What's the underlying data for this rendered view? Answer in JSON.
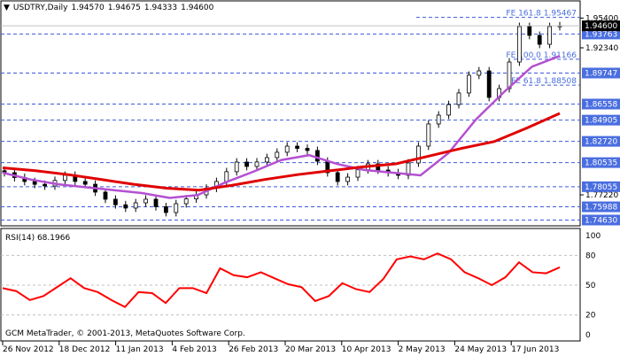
{
  "header": {
    "symbol_timeframe": "USDTRY,Daily",
    "open": "1.94570",
    "high": "1.94675",
    "low": "1.94333",
    "close": "1.94600"
  },
  "colors": {
    "candle": "#000000",
    "sma_fast": "#b450d2",
    "sma_slow": "#e00000",
    "level_line": "#3c5adc",
    "level_label_bg": "#4a6ee0",
    "rsi": "#ff0000",
    "fe_text": "#4a6ee0"
  },
  "chart_data": [
    {
      "type": "candlestick",
      "title": "USDTRY,Daily",
      "x_tick_labels": [
        "26 Nov 2012",
        "18 Dec 2012",
        "11 Jan 2013",
        "4 Feb 2013",
        "26 Feb 2013",
        "20 Mar 2013",
        "10 Apr 2013",
        "2 May 2013",
        "24 May 2013",
        "17 Jun 2013"
      ],
      "y_tick_labels": [
        "1.95400",
        "1.92340",
        "1.77220"
      ],
      "ylim": [
        1.74,
        1.965
      ],
      "closes": [
        1.795,
        1.79,
        1.7859,
        1.783,
        1.7813,
        1.787,
        1.7923,
        1.786,
        1.7831,
        1.775,
        1.7677,
        1.762,
        1.7586,
        1.764,
        1.7677,
        1.76,
        1.754,
        1.7631,
        1.768,
        1.7722,
        1.779,
        1.7859,
        1.796,
        1.8059,
        1.8014,
        1.806,
        1.8105,
        1.816,
        1.8223,
        1.82,
        1.8178,
        1.8068,
        1.795,
        1.7859,
        1.7904,
        1.798,
        1.8041,
        1.7977,
        1.795,
        1.7923,
        1.805,
        1.8223,
        1.8451,
        1.8542,
        1.865,
        1.877,
        1.8952,
        1.8997,
        1.8724,
        1.8815,
        1.9088,
        1.9453,
        1.9362,
        1.927,
        1.9453,
        1.946
      ],
      "sma_fast": [
        1.795,
        1.788,
        1.783,
        1.78,
        1.777,
        1.774,
        1.769,
        1.772,
        1.785,
        1.796,
        1.808,
        1.813,
        1.804,
        1.7977,
        1.795,
        1.7923,
        1.815,
        1.85,
        1.878,
        1.904,
        1.915
      ],
      "sma_slow": [
        1.8,
        1.797,
        1.793,
        1.788,
        1.783,
        1.779,
        1.777,
        1.782,
        1.788,
        1.793,
        1.797,
        1.801,
        1.8041,
        1.812,
        1.82,
        1.827,
        1.841,
        1.856
      ],
      "levels": [
        "1.93763",
        "1.89747",
        "1.86558",
        "1.84905",
        "1.82720",
        "1.80535",
        "1.78055",
        "1.75988",
        "1.74630"
      ],
      "current_price": "1.94600",
      "fibonacci": [
        {
          "label": "FE 161.8",
          "value": "1.95467"
        },
        {
          "label": "FE 100.0",
          "value": "1.91166"
        },
        {
          "label": "FE 61.8",
          "value": "1.88508"
        }
      ]
    },
    {
      "type": "line",
      "title": "RSI(14) 68.1966",
      "ylim": [
        0,
        100
      ],
      "y_tick_labels": [
        "100",
        "80",
        "50",
        "20",
        "0"
      ],
      "grid_levels": [
        80,
        50,
        20
      ],
      "values": [
        47,
        44,
        35,
        39,
        48,
        57,
        47,
        43,
        35,
        28,
        43,
        42,
        32,
        47,
        47,
        42,
        67,
        60,
        58,
        63,
        57,
        51,
        48,
        34,
        39,
        52,
        46,
        43,
        56,
        76,
        79,
        76,
        82,
        76,
        63,
        57,
        50,
        58,
        73,
        63,
        62,
        68
      ]
    }
  ],
  "footer": {
    "copyright": "GCM MetaTrader, © 2001-2013, MetaQuotes Software Corp."
  }
}
